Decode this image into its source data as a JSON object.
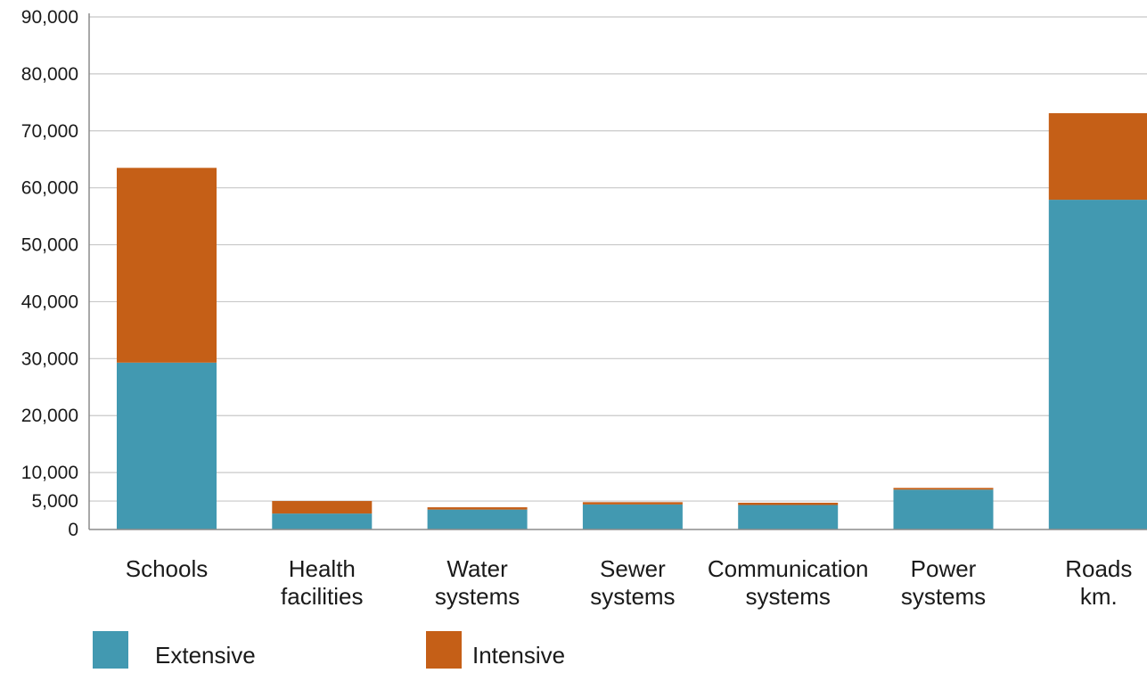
{
  "chart_data": {
    "type": "bar",
    "stacked": true,
    "title": "",
    "xlabel": "",
    "ylabel": "",
    "ylim": [
      0,
      90000
    ],
    "y_ticks": [
      0,
      5000,
      10000,
      20000,
      30000,
      40000,
      50000,
      60000,
      70000,
      80000,
      90000
    ],
    "y_tick_labels": [
      "0",
      "5,000",
      "10,000",
      "20,000",
      "30,000",
      "40,000",
      "50,000",
      "60,000",
      "70,000",
      "80,000",
      "90,000"
    ],
    "grid": true,
    "legend_position": "bottom-left",
    "categories": [
      [
        "Schools"
      ],
      [
        "Health",
        "facilities"
      ],
      [
        "Water",
        "systems"
      ],
      [
        "Sewer",
        "systems"
      ],
      [
        "Communication",
        "systems"
      ],
      [
        "Power",
        "systems"
      ],
      [
        "Roads",
        "km."
      ]
    ],
    "series": [
      {
        "name": "Extensive",
        "color": "#4299b1",
        "values": [
          29300,
          2800,
          3500,
          4400,
          4300,
          7000,
          57900
        ]
      },
      {
        "name": "Intensive",
        "color": "#c55f17",
        "values": [
          34200,
          2200,
          400,
          400,
          400,
          300,
          15200
        ]
      }
    ]
  }
}
